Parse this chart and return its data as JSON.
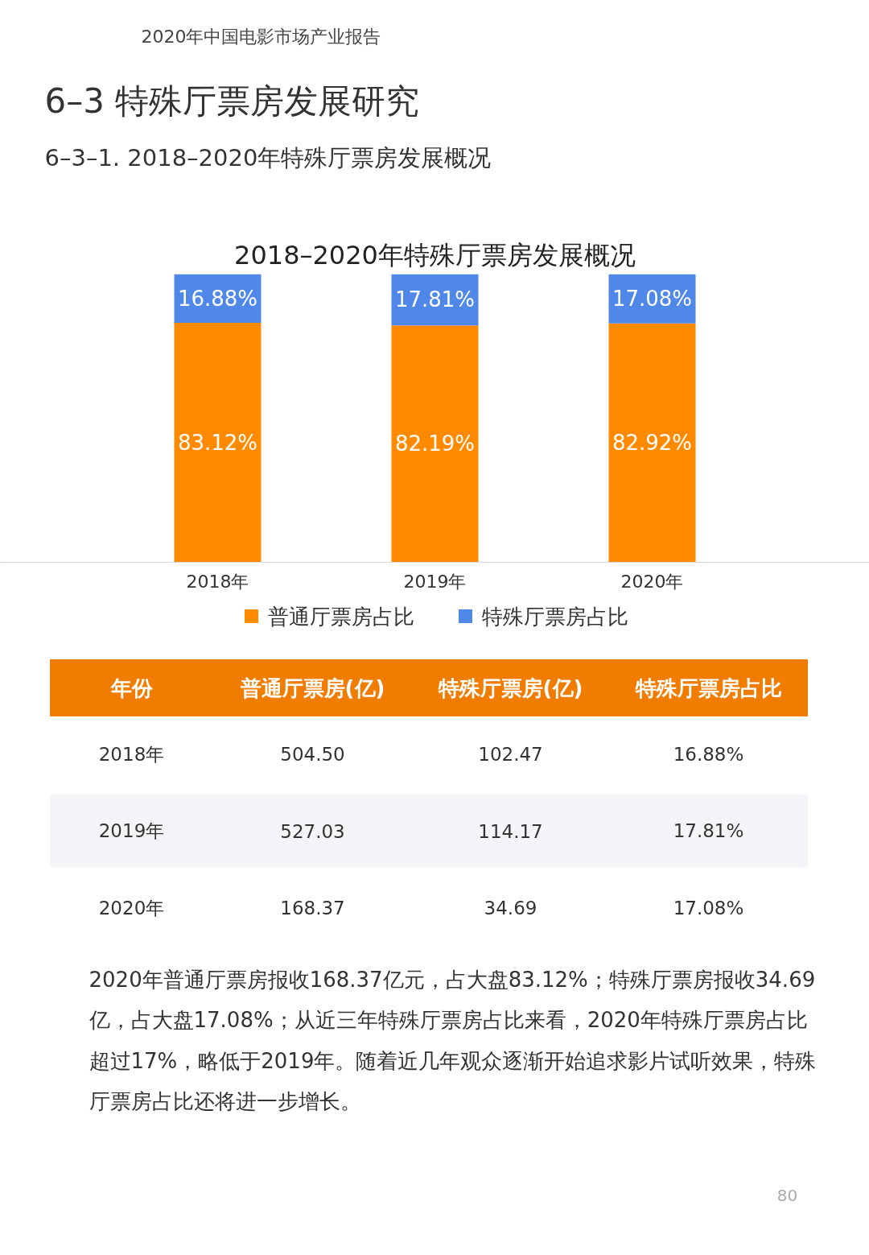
{
  "chart_data": [
    {
      "type": "other",
      "title": "6–3 特殊厅票房发展研究",
      "subtitle": "6–3–1. 2018–2020年特殊厅票房发展概况",
      "annotations": [
        "2020年中国电影市场产业报告"
      ]
    },
    {
      "type": "bar",
      "title": "2018–2020年特殊厅票房发展概况",
      "categories": [
        "2018年",
        "2019年",
        "2020年"
      ],
      "stacked": true,
      "ylim": [
        0,
        100
      ],
      "legend": "bottom",
      "grid": false,
      "series": [
        {
          "name": "普通厅票房占比",
          "color": "#ff8a00",
          "values": [
            83.12,
            82.19,
            82.92
          ],
          "value_labels": [
            "83.12%",
            "82.19%",
            "82.92%"
          ]
        },
        {
          "name": "特殊厅票房占比",
          "color": "#4f88e8",
          "values": [
            16.88,
            17.81,
            17.08
          ],
          "value_labels": [
            "16.88%",
            "17.81%",
            "17.08%"
          ]
        }
      ]
    },
    {
      "type": "other",
      "categories": [
        "年份",
        "普通厅票房(亿)",
        "特殊厅票房(亿)",
        "特殊厅票房占比"
      ],
      "cell_labels": [
        [
          "2018年",
          "504.50",
          "102.47",
          "16.88%"
        ],
        [
          "2019年",
          "527.03",
          "114.17",
          "17.81%"
        ],
        [
          "2020年",
          "168.37",
          "34.69",
          "17.08%"
        ]
      ],
      "annotations": [
        "2020年普通厅票房报收168.37亿元，占大盘83.12%；特殊厅票房报收34.69亿，占大盘17.08%；从近三年特殊厅票房占比来看，2020年特殊厅票房占比超过17%，略低于2019年。随着近几年观众逐渐开始追求影片试听效果，特殊厅票房占比还将进一步增长。",
        "80"
      ]
    }
  ]
}
